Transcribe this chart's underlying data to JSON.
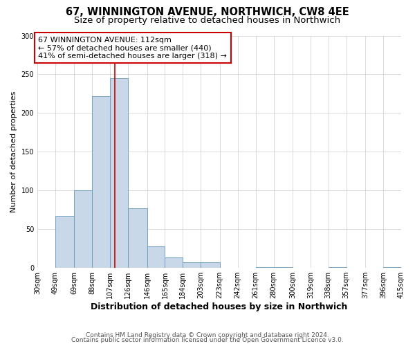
{
  "title": "67, WINNINGTON AVENUE, NORTHWICH, CW8 4EE",
  "subtitle": "Size of property relative to detached houses in Northwich",
  "xlabel": "Distribution of detached houses by size in Northwich",
  "ylabel": "Number of detached properties",
  "bin_edges": [
    30,
    49,
    69,
    88,
    107,
    126,
    146,
    165,
    184,
    203,
    223,
    242,
    261,
    280,
    300,
    319,
    338,
    357,
    377,
    396,
    415
  ],
  "bar_heights": [
    0,
    67,
    100,
    222,
    245,
    77,
    28,
    14,
    7,
    7,
    0,
    0,
    1,
    1,
    0,
    0,
    1,
    0,
    0,
    1
  ],
  "bar_color": "#c8d8e8",
  "bar_edgecolor": "#6699bb",
  "vline_x": 112,
  "vline_color": "#cc0000",
  "annotation_line1": "67 WINNINGTON AVENUE: 112sqm",
  "annotation_line2": "← 57% of detached houses are smaller (440)",
  "annotation_line3": "41% of semi-detached houses are larger (318) →",
  "annotation_box_edgecolor": "#cc0000",
  "annotation_box_facecolor": "#ffffff",
  "ylim": [
    0,
    300
  ],
  "yticks": [
    0,
    50,
    100,
    150,
    200,
    250,
    300
  ],
  "footer_line1": "Contains HM Land Registry data © Crown copyright and database right 2024.",
  "footer_line2": "Contains public sector information licensed under the Open Government Licence v3.0.",
  "background_color": "#ffffff",
  "plot_background_color": "#ffffff",
  "grid_color": "#cccccc",
  "title_fontsize": 10.5,
  "subtitle_fontsize": 9.5,
  "xlabel_fontsize": 9,
  "ylabel_fontsize": 8,
  "tick_fontsize": 7,
  "footer_fontsize": 6.5,
  "annotation_fontsize": 8
}
